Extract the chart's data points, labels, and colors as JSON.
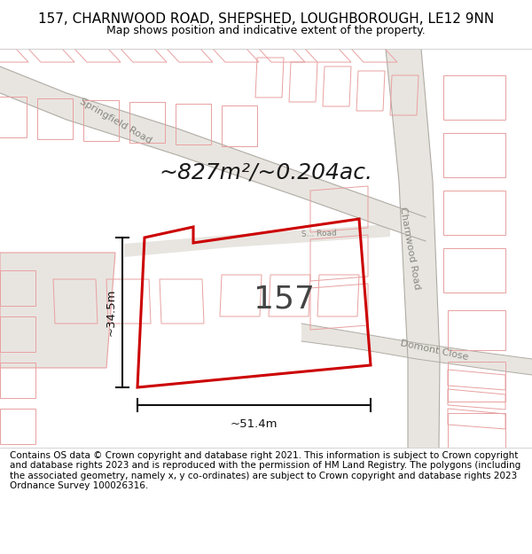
{
  "title": "157, CHARNWOOD ROAD, SHEPSHED, LOUGHBOROUGH, LE12 9NN",
  "subtitle": "Map shows position and indicative extent of the property.",
  "footer": "Contains OS data © Crown copyright and database right 2021. This information is subject to Crown copyright and database rights 2023 and is reproduced with the permission of HM Land Registry. The polygons (including the associated geometry, namely x, y co-ordinates) are subject to Crown copyright and database rights 2023 Ordnance Survey 100026316.",
  "area_text": "~827m²/~0.204ac.",
  "label_157": "157",
  "dim_width": "~51.4m",
  "dim_height": "~34.5m",
  "bg_color": "#f5f3f0",
  "road_fill": "#e8e5e0",
  "road_line": "#b0aba4",
  "plot_line_color": "#cc0000",
  "other_line_color": "#e8a0a0",
  "dim_line_color": "#111111",
  "road_label_color": "#888880",
  "title_fontsize": 11,
  "subtitle_fontsize": 9,
  "footer_fontsize": 7.5,
  "area_fontsize": 18,
  "label_fontsize": 26,
  "dim_fontsize": 9.5,
  "road_label_fontsize": 8
}
